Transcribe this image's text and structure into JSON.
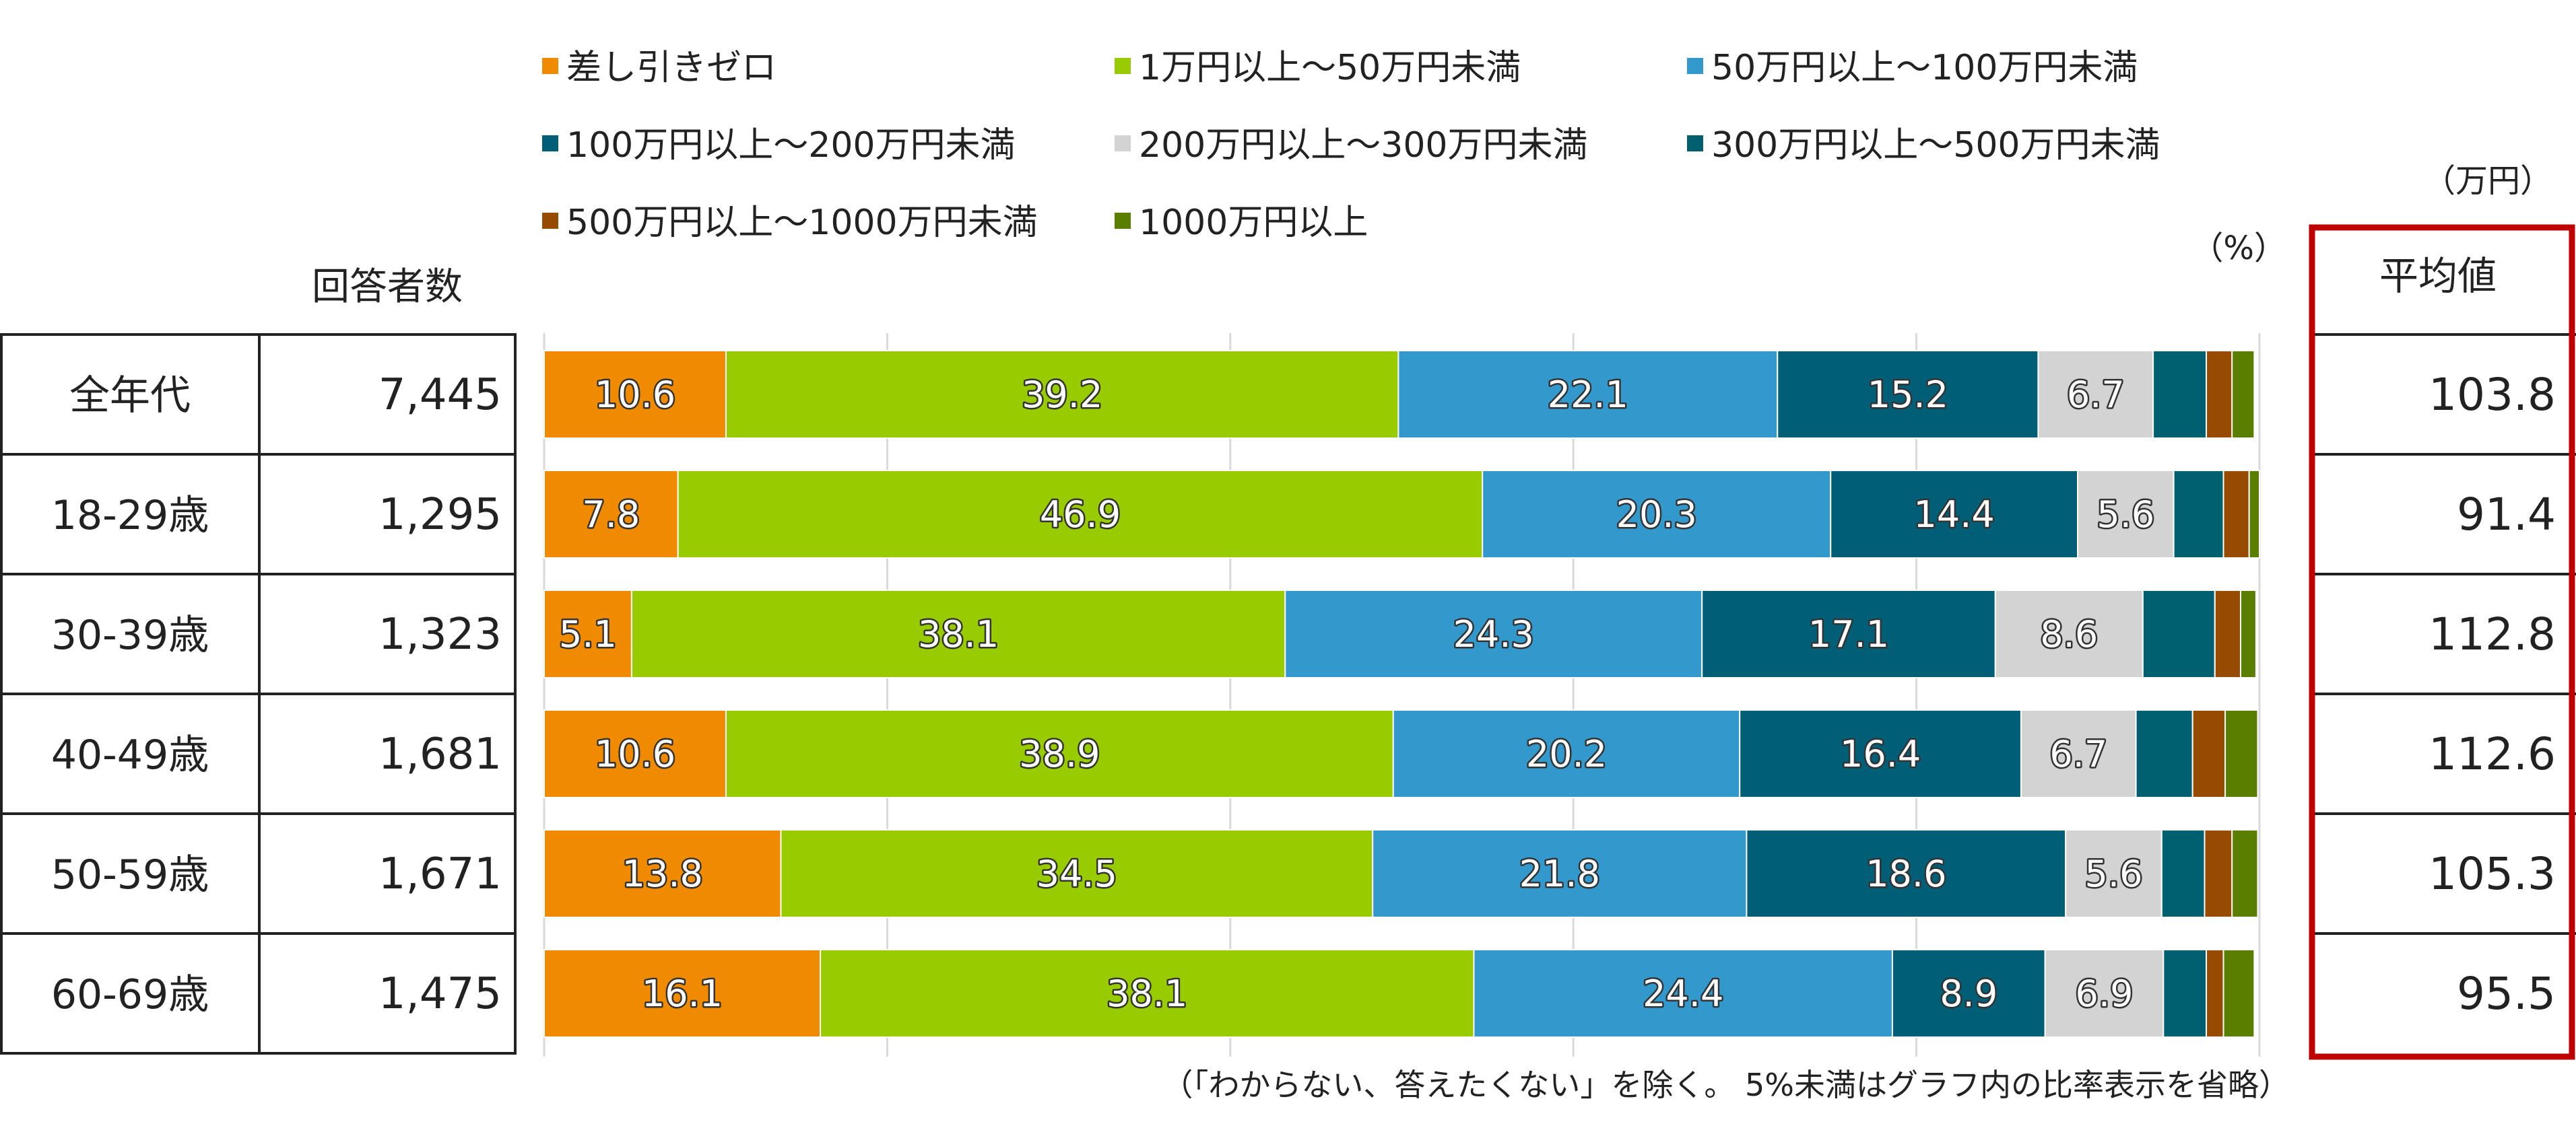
{
  "chart_data": {
    "type": "bar",
    "orientation": "horizontal",
    "stacked": true,
    "normalized_percent": true,
    "unit": "（%）",
    "xlim": [
      0,
      100
    ],
    "grid": true,
    "legend_position": "top",
    "legend": [
      "差し引きゼロ",
      "1万円以上～50万円未満",
      "50万円以上～100万円未満",
      "100万円以上～200万円未満",
      "200万円以上～300万円未満",
      "300万円以上～500万円未満",
      "500万円以上～1000万円未満",
      "1000万円以上"
    ],
    "colors": [
      "#f08a00",
      "#99cc00",
      "#3399cc",
      "#005f77",
      "#d3d3d3",
      "#006070",
      "#964b00",
      "#5a7f00"
    ],
    "categories": [
      "全年代",
      "18-29歳",
      "30-39歳",
      "40-49歳",
      "50-59歳",
      "60-69歳"
    ],
    "series": [
      {
        "name": "差し引きゼロ",
        "values": [
          10.6,
          7.8,
          5.1,
          10.6,
          13.8,
          16.1
        ]
      },
      {
        "name": "1万円以上～50万円未満",
        "values": [
          39.2,
          46.9,
          38.1,
          38.9,
          34.5,
          38.1
        ]
      },
      {
        "name": "50万円以上～100万円未満",
        "values": [
          22.1,
          20.3,
          24.3,
          20.2,
          21.8,
          24.4
        ]
      },
      {
        "name": "100万円以上～200万円未満",
        "values": [
          15.2,
          14.4,
          17.1,
          16.4,
          18.6,
          8.9
        ]
      },
      {
        "name": "200万円以上～300万円未満",
        "values": [
          6.7,
          5.6,
          8.6,
          6.7,
          5.6,
          6.9
        ]
      },
      {
        "name": "300万円以上～500万円未満",
        "values": [
          3.1,
          2.9,
          4.2,
          3.3,
          2.5,
          2.5
        ]
      },
      {
        "name": "500万円以上～1000万円未満",
        "values": [
          1.5,
          1.5,
          1.5,
          1.9,
          1.6,
          1.0
        ]
      },
      {
        "name": "1000万円以上",
        "values": [
          1.3,
          0.6,
          0.9,
          1.9,
          1.5,
          1.8
        ]
      }
    ],
    "label_threshold": 5,
    "footnote": "（「わからない、答えたくない」を除く。 5%未満はグラフ内の比率表示を省略）"
  },
  "left_table": {
    "header": "回答者数",
    "rows": [
      {
        "label": "全年代",
        "count": "7,445"
      },
      {
        "label": "18-29歳",
        "count": "1,295"
      },
      {
        "label": "30-39歳",
        "count": "1,323"
      },
      {
        "label": "40-49歳",
        "count": "1,681"
      },
      {
        "label": "50-59歳",
        "count": "1,671"
      },
      {
        "label": "60-69歳",
        "count": "1,475"
      }
    ]
  },
  "right_table": {
    "unit": "（万円）",
    "header": "平均値",
    "values": [
      "103.8",
      "91.4",
      "112.8",
      "112.6",
      "105.3",
      "95.5"
    ],
    "highlight_color": "#c00000"
  }
}
